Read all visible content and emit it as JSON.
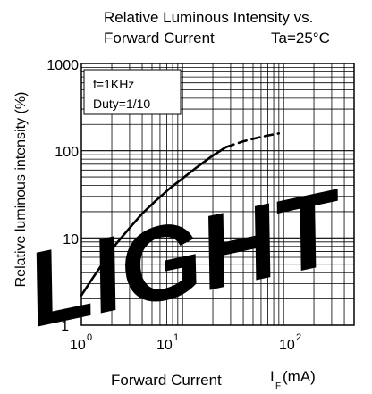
{
  "chart_data": {
    "type": "line",
    "title_line1": "Relative Luminous Intensity vs.",
    "title_line2": "Forward Current",
    "condition": "Ta=25°C",
    "legend_lines": [
      "f=1KHz",
      "Duty=1/10"
    ],
    "ylabel": "Relative luminous intensity (%)",
    "xlabel": "Forward Current",
    "xlabel_symbol": "I",
    "xlabel_sub": "F",
    "xlabel_unit": "(mA)",
    "x_scale": "log",
    "y_scale": "log",
    "xlim": [
      1,
      500
    ],
    "ylim": [
      1,
      1000
    ],
    "x_ticks": [
      {
        "base": "10",
        "exp": "0"
      },
      {
        "base": "10",
        "exp": "1"
      },
      {
        "base": "10",
        "exp": "2"
      }
    ],
    "y_ticks": [
      "1000",
      "100",
      "10",
      "1"
    ],
    "grid": true,
    "watermark": "LIGHT",
    "watermark_color": "#dce9f3",
    "series": [
      {
        "style": "solid",
        "points": [
          [
            1,
            2.2
          ],
          [
            1.3,
            3.5
          ],
          [
            1.7,
            5.5
          ],
          [
            2.2,
            8.5
          ],
          [
            3,
            13
          ],
          [
            4,
            19
          ],
          [
            5.5,
            27
          ],
          [
            7.5,
            37
          ],
          [
            10,
            48
          ],
          [
            14,
            65
          ],
          [
            20,
            88
          ],
          [
            27,
            110
          ]
        ]
      },
      {
        "style": "dashed",
        "points": [
          [
            27,
            110
          ],
          [
            40,
            128
          ],
          [
            60,
            144
          ],
          [
            90,
            158
          ]
        ]
      }
    ]
  }
}
